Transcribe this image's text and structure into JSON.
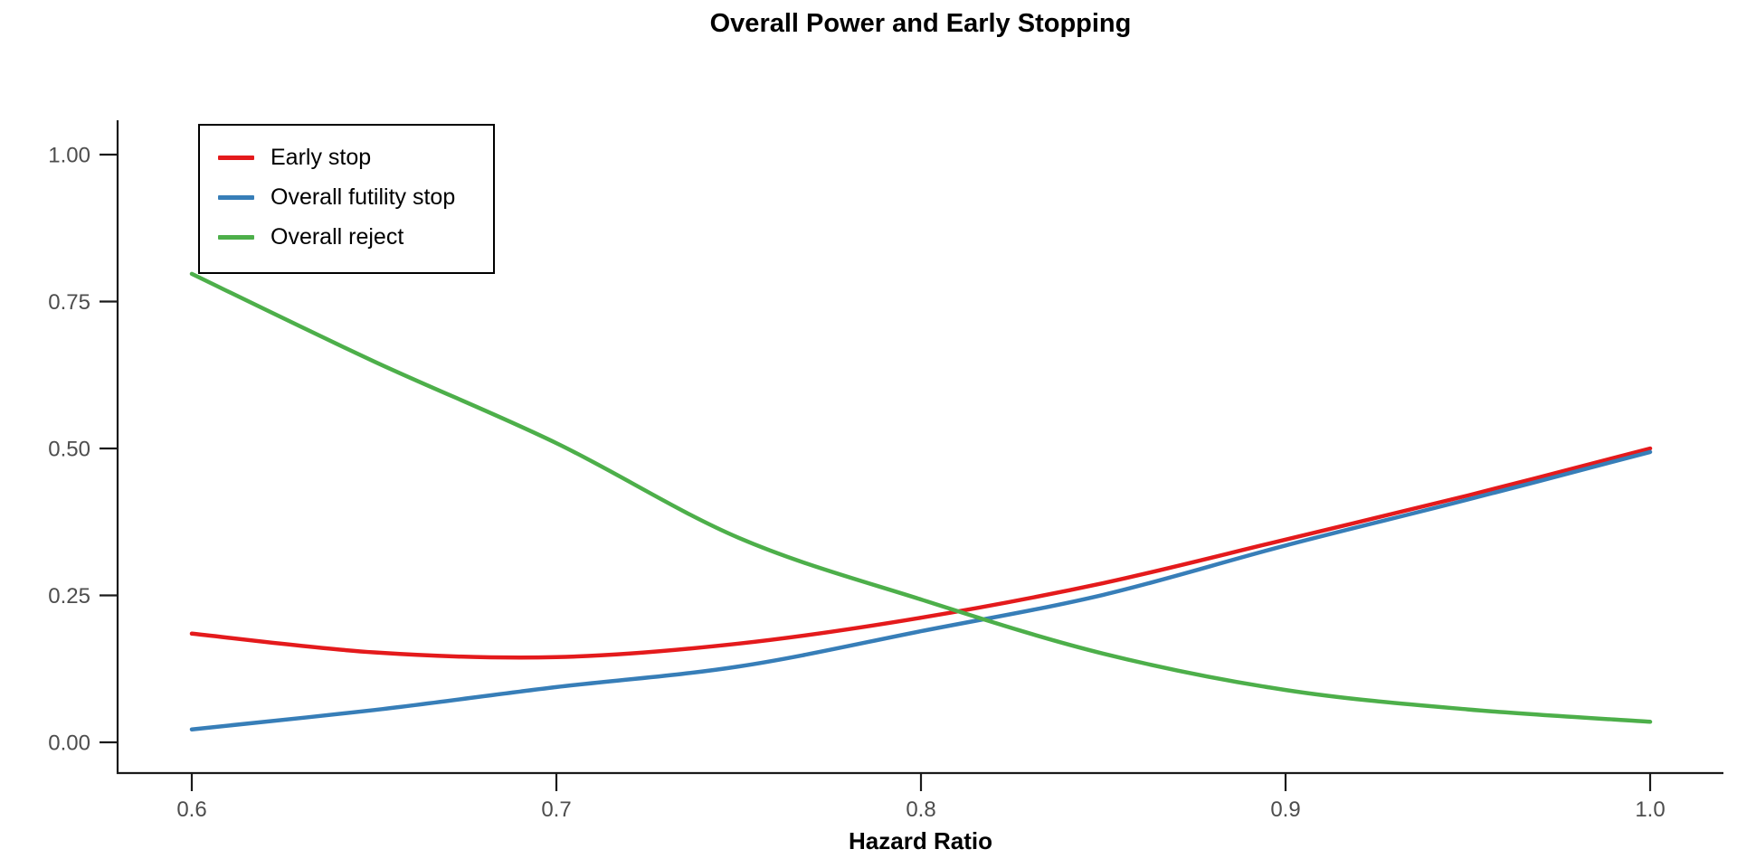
{
  "title": "Overall Power and Early Stopping",
  "colors": {
    "axis": "#1a1a1a",
    "tick_label": "#4d4d4d",
    "background": "#ffffff",
    "early_stop": "#e41a1c",
    "overall_futility_stop": "#377eb8",
    "overall_reject": "#4daf4a"
  },
  "chart_data": {
    "type": "line",
    "title": "Overall Power and Early Stopping",
    "xlabel": "Hazard Ratio",
    "ylabel": "",
    "xlim": [
      0.6,
      1.0
    ],
    "ylim": [
      0.0,
      1.0
    ],
    "grid": false,
    "legend_position": "top-left",
    "x_ticks": {
      "values": [
        0.6,
        0.7,
        0.8,
        0.9,
        1.0
      ],
      "labels": [
        "0.6",
        "0.7",
        "0.8",
        "0.9",
        "1.0"
      ]
    },
    "y_ticks": {
      "values": [
        0.0,
        0.25,
        0.5,
        0.75,
        1.0
      ],
      "labels": [
        "0.00",
        "0.25",
        "0.50",
        "0.75",
        "1.00"
      ]
    },
    "x": [
      0.6,
      0.65,
      0.7,
      0.75,
      0.8,
      0.85,
      0.9,
      0.95,
      1.0
    ],
    "series": [
      {
        "name": "Early stop",
        "color": "#e41a1c",
        "values": [
          0.185,
          0.153,
          0.145,
          0.168,
          0.212,
          0.271,
          0.345,
          0.42,
          0.5
        ]
      },
      {
        "name": "Overall futility stop",
        "color": "#377eb8",
        "values": [
          0.022,
          0.055,
          0.094,
          0.129,
          0.189,
          0.251,
          0.335,
          0.413,
          0.494
        ]
      },
      {
        "name": "Overall reject",
        "color": "#4daf4a",
        "values": [
          0.797,
          0.648,
          0.509,
          0.348,
          0.243,
          0.151,
          0.089,
          0.056,
          0.035
        ]
      }
    ]
  }
}
